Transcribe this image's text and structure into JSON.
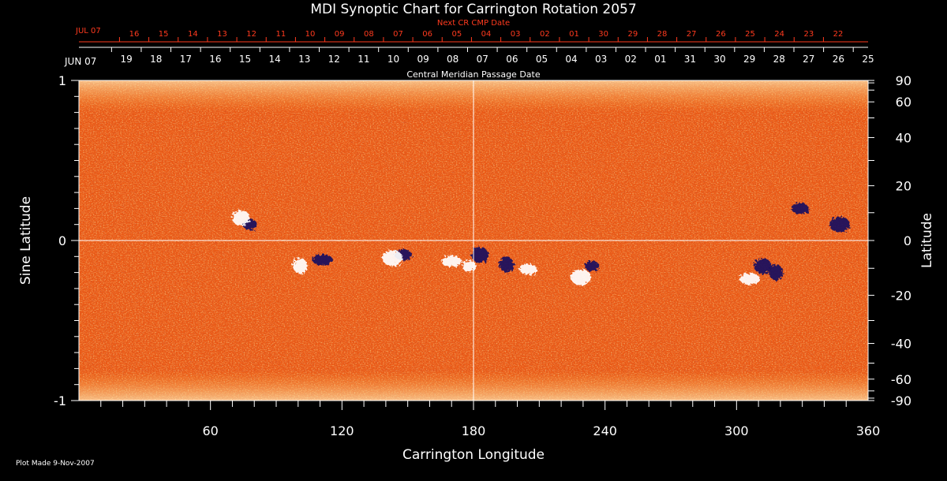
{
  "chart_data": {
    "type": "heatmap",
    "title": "MDI Synoptic Chart for Carrington Rotation 2057",
    "xlabel": "Carrington Longitude",
    "ylabel": "Sine Latitude",
    "ylabel_right": "Latitude",
    "xlim": [
      0,
      360
    ],
    "ylim": [
      -1,
      1
    ],
    "x_ticks": [
      60,
      120,
      180,
      240,
      300,
      360
    ],
    "y_ticks_left": [
      -1,
      0,
      1
    ],
    "y_tick_labels_left": [
      "-1",
      "0",
      "1"
    ],
    "y_ticks_right": [
      90,
      60,
      40,
      20,
      0,
      -20,
      -40,
      -60,
      -90
    ],
    "top_axis_label": "Central Meridian Passage Date",
    "top_axis_month_label": "JUN 07",
    "top_axis_dates": [
      "19",
      "18",
      "17",
      "16",
      "15",
      "14",
      "13",
      "12",
      "11",
      "10",
      "09",
      "08",
      "07",
      "06",
      "05",
      "04",
      "03",
      "02",
      "01",
      "31",
      "30",
      "29",
      "28",
      "27",
      "26",
      "25"
    ],
    "next_cr_label": "Next CR CMP Date",
    "next_cr_month_label": "JUL 07",
    "next_cr_dates": [
      "16",
      "15",
      "14",
      "13",
      "12",
      "11",
      "10",
      "09",
      "08",
      "07",
      "06",
      "05",
      "04",
      "03",
      "02",
      "01",
      "30",
      "29",
      "28",
      "27",
      "26",
      "25",
      "24",
      "23",
      "22"
    ],
    "guide_lines": {
      "longitude": 180,
      "sine_latitude": 0
    },
    "colors": {
      "background": "#000000",
      "map_base": "#ee5a14",
      "map_dark": "#b82a08",
      "map_light": "#ff9a30",
      "positive_flux": "#ffffff",
      "negative_flux": "#1a1060",
      "red_axis": "#ff3a1e",
      "grid": "#ffffff"
    },
    "active_regions": [
      {
        "longitude": 78,
        "sine_latitude": 0.1,
        "polarity": "negative"
      },
      {
        "longitude": 74,
        "sine_latitude": 0.14,
        "polarity": "positive"
      },
      {
        "longitude": 111,
        "sine_latitude": -0.12,
        "polarity": "negative"
      },
      {
        "longitude": 101,
        "sine_latitude": -0.16,
        "polarity": "positive"
      },
      {
        "longitude": 148,
        "sine_latitude": -0.09,
        "polarity": "negative"
      },
      {
        "longitude": 143,
        "sine_latitude": -0.11,
        "polarity": "positive"
      },
      {
        "longitude": 178,
        "sine_latitude": -0.16,
        "polarity": "positive"
      },
      {
        "longitude": 183,
        "sine_latitude": -0.09,
        "polarity": "negative"
      },
      {
        "longitude": 170,
        "sine_latitude": -0.13,
        "polarity": "positive"
      },
      {
        "longitude": 195,
        "sine_latitude": -0.15,
        "polarity": "negative"
      },
      {
        "longitude": 205,
        "sine_latitude": -0.18,
        "polarity": "positive"
      },
      {
        "longitude": 229,
        "sine_latitude": -0.23,
        "polarity": "positive"
      },
      {
        "longitude": 234,
        "sine_latitude": -0.16,
        "polarity": "negative"
      },
      {
        "longitude": 312,
        "sine_latitude": -0.16,
        "polarity": "negative"
      },
      {
        "longitude": 306,
        "sine_latitude": -0.24,
        "polarity": "positive"
      },
      {
        "longitude": 318,
        "sine_latitude": -0.2,
        "polarity": "negative"
      },
      {
        "longitude": 329,
        "sine_latitude": 0.2,
        "polarity": "negative"
      },
      {
        "longitude": 347,
        "sine_latitude": 0.1,
        "polarity": "negative"
      }
    ]
  },
  "footer": {
    "plot_made": "Plot Made  9-Nov-2007"
  }
}
